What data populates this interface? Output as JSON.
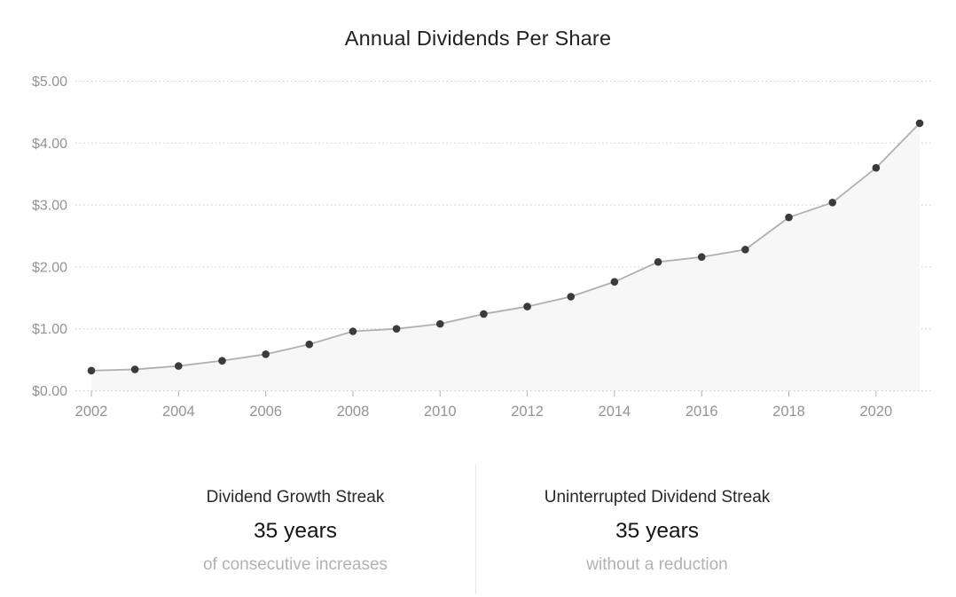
{
  "title": "Annual Dividends Per Share",
  "chart_data": {
    "type": "area",
    "title": "Annual Dividends Per Share",
    "x": [
      2002,
      2003,
      2004,
      2005,
      2006,
      2007,
      2008,
      2009,
      2010,
      2011,
      2012,
      2013,
      2014,
      2015,
      2016,
      2017,
      2018,
      2019,
      2020,
      2021
    ],
    "series": [
      {
        "name": "Dividends Per Share",
        "values": [
          0.325,
          0.345,
          0.4,
          0.485,
          0.59,
          0.75,
          0.96,
          1.0,
          1.08,
          1.24,
          1.36,
          1.52,
          1.76,
          2.08,
          2.16,
          2.28,
          2.8,
          3.04,
          3.6,
          4.32
        ]
      }
    ],
    "xlabel": "",
    "ylabel": "",
    "ylim": [
      0,
      5
    ],
    "ytick_labels": [
      "$0.00",
      "$1.00",
      "$2.00",
      "$3.00",
      "$4.00",
      "$5.00"
    ],
    "xticks": [
      2002,
      2004,
      2006,
      2008,
      2010,
      2012,
      2014,
      2016,
      2018,
      2020
    ],
    "grid": "horizontal-dotted",
    "legend": "none",
    "colors": {
      "line": "#b0b0b0",
      "point": "#3b3b3b",
      "fill": "#f7f7f7",
      "grid": "#cccccc",
      "tick": "#b0b0b0",
      "axis_label": "#949494"
    }
  },
  "stats": [
    {
      "label": "Dividend Growth Streak",
      "value": "35 years",
      "sublabel": "of consecutive increases"
    },
    {
      "label": "Uninterrupted Dividend Streak",
      "value": "35 years",
      "sublabel": "without a reduction"
    }
  ]
}
